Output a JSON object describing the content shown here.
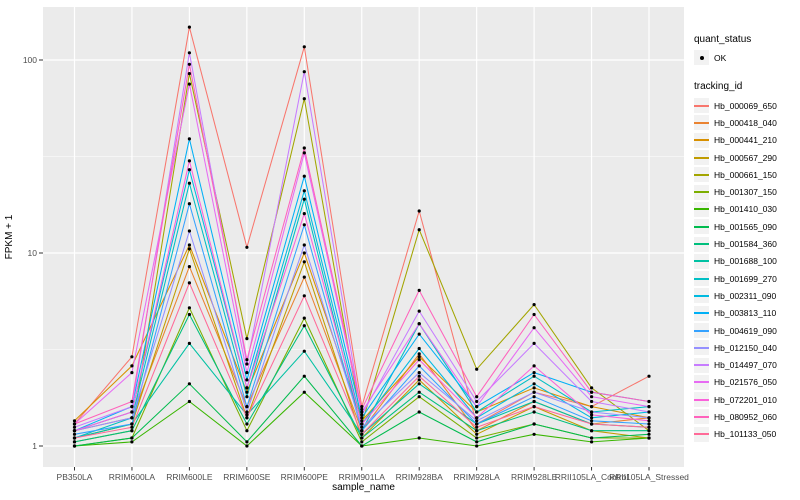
{
  "chart_data": {
    "type": "line",
    "title": "",
    "xlabel": "sample_name",
    "ylabel": "FPKM + 1",
    "y_scale": "log10",
    "y_ticks": [
      1,
      10,
      100
    ],
    "y_minor_ticks": [
      3.1623,
      31.623
    ],
    "ylim": [
      0.77,
      190
    ],
    "grid": true,
    "panel_bg": "#EBEBEB",
    "grid_color": "#FFFFFF",
    "point_color": "#000000",
    "tick_label_color": "#4D4D4D",
    "legend_position": "right",
    "legend": {
      "quant_status_title": "quant_status",
      "quant_status_items": [
        "OK"
      ],
      "tracking_id_title": "tracking_id"
    },
    "categories": [
      "PB350LA",
      "RRIM600LA",
      "RRIM600LE",
      "RRIM600SE",
      "RRIM600PE",
      "RRIM901LA",
      "RRIM928BA",
      "RRIM928LA",
      "RRIM928LE",
      "RRII105LA_Control",
      "RRII105LA_Stressed"
    ],
    "series": [
      {
        "name": "Hb_000069_650",
        "color": "#F8766D",
        "values": [
          1.3,
          2.9,
          148,
          10.7,
          117,
          1.6,
          16.5,
          1.3,
          1.9,
          1.6,
          2.3
        ]
      },
      {
        "name": "Hb_000418_040",
        "color": "#EA8331",
        "values": [
          1.2,
          1.4,
          8.5,
          1.6,
          7.5,
          1.2,
          3.0,
          1.2,
          1.7,
          1.3,
          1.4
        ]
      },
      {
        "name": "Hb_000441_210",
        "color": "#D89000",
        "values": [
          1.35,
          2.6,
          11.0,
          1.9,
          10.0,
          1.35,
          2.9,
          1.5,
          2.0,
          1.6,
          1.4
        ]
      },
      {
        "name": "Hb_000567_290",
        "color": "#C09B00",
        "values": [
          1.1,
          1.3,
          10.5,
          1.4,
          9.0,
          1.1,
          2.2,
          1.15,
          1.6,
          1.2,
          1.1
        ]
      },
      {
        "name": "Hb_000661_150",
        "color": "#A3A500",
        "values": [
          1.05,
          1.2,
          85,
          3.6,
          63,
          1.3,
          13.2,
          2.5,
          5.4,
          2.0,
          1.2
        ]
      },
      {
        "name": "Hb_001307_150",
        "color": "#7CAE00",
        "values": [
          1.0,
          1.1,
          5.2,
          1.2,
          4.6,
          1.05,
          1.8,
          1.1,
          1.3,
          1.1,
          1.1
        ]
      },
      {
        "name": "Hb_001410_030",
        "color": "#39B600",
        "values": [
          1.0,
          1.05,
          1.7,
          1.0,
          1.9,
          1.0,
          1.1,
          1.0,
          1.15,
          1.05,
          1.1
        ]
      },
      {
        "name": "Hb_001565_090",
        "color": "#00BB4E",
        "values": [
          1.0,
          1.1,
          2.1,
          1.05,
          2.3,
          1.0,
          1.5,
          1.05,
          1.3,
          1.1,
          1.15
        ]
      },
      {
        "name": "Hb_001584_360",
        "color": "#00BF7D",
        "values": [
          1.05,
          1.2,
          4.8,
          1.3,
          4.2,
          1.1,
          1.9,
          1.2,
          1.5,
          1.2,
          1.2
        ]
      },
      {
        "name": "Hb_001688_100",
        "color": "#00C1A3",
        "values": [
          1.1,
          1.3,
          3.4,
          1.45,
          3.1,
          1.15,
          2.1,
          1.3,
          1.7,
          1.3,
          1.25
        ]
      },
      {
        "name": "Hb_001699_270",
        "color": "#00BFC4",
        "values": [
          1.1,
          1.4,
          23,
          1.8,
          19,
          1.2,
          4.3,
          1.5,
          2.3,
          1.5,
          1.6
        ]
      },
      {
        "name": "Hb_002311_090",
        "color": "#00BAE0",
        "values": [
          1.2,
          1.5,
          27,
          2.0,
          21,
          1.3,
          3.2,
          1.4,
          2.1,
          1.4,
          1.5
        ]
      },
      {
        "name": "Hb_003813_110",
        "color": "#00B0F6",
        "values": [
          1.2,
          1.6,
          39,
          2.2,
          25,
          1.4,
          3.8,
          1.6,
          2.4,
          1.9,
          1.7
        ]
      },
      {
        "name": "Hb_004619_090",
        "color": "#35A2FF",
        "values": [
          1.15,
          1.3,
          18,
          1.6,
          14,
          1.2,
          2.6,
          1.3,
          1.8,
          1.35,
          1.3
        ]
      },
      {
        "name": "Hb_012150_040",
        "color": "#9590FF",
        "values": [
          1.2,
          1.4,
          13,
          1.5,
          11,
          1.25,
          2.4,
          1.35,
          1.9,
          1.5,
          1.4
        ]
      },
      {
        "name": "Hb_014497_070",
        "color": "#C77CFF",
        "values": [
          1.25,
          1.6,
          109,
          2.66,
          87,
          1.45,
          5.0,
          1.7,
          3.4,
          1.7,
          1.5
        ]
      },
      {
        "name": "Hb_021576_050",
        "color": "#E76BF3",
        "values": [
          1.3,
          2.4,
          75,
          2.4,
          33,
          1.5,
          4.3,
          1.6,
          4.1,
          1.8,
          1.6
        ]
      },
      {
        "name": "Hb_072201_010",
        "color": "#FA62DB",
        "values": [
          1.2,
          1.5,
          30,
          2.0,
          16,
          1.3,
          2.8,
          1.4,
          2.6,
          1.45,
          1.35
        ]
      },
      {
        "name": "Hb_080952_060",
        "color": "#FF62BC",
        "values": [
          1.3,
          1.7,
          95,
          2.8,
          35,
          1.55,
          6.4,
          1.8,
          4.8,
          1.9,
          1.7
        ]
      },
      {
        "name": "Hb_101133_050",
        "color": "#FF6A98",
        "values": [
          1.1,
          1.25,
          7.0,
          1.4,
          6.0,
          1.15,
          2.3,
          1.25,
          1.6,
          1.3,
          1.25
        ]
      }
    ]
  }
}
